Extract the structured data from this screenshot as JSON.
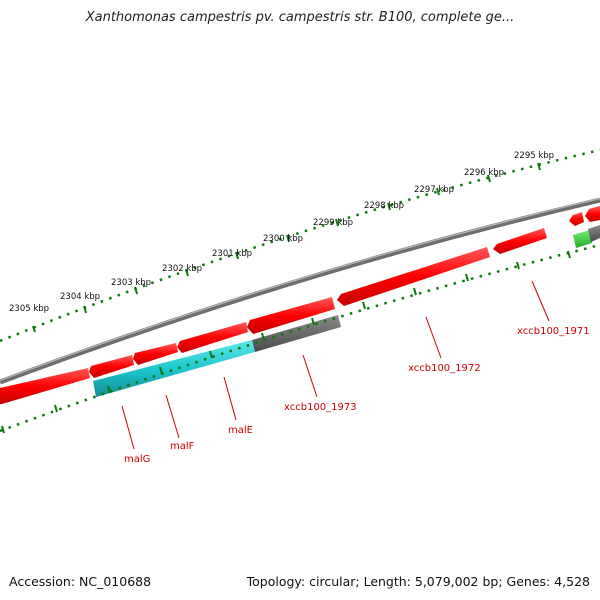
{
  "title": "Xanthomonas campestris pv. campestris str. B100, complete ge...",
  "footer": {
    "accession": "Accession: NC_010688",
    "summary": "Topology: circular; Length: 5,079,002 bp; Genes: 4,528"
  },
  "scale_labels": [
    "2305 kbp",
    "2304 kbp",
    "2303 kbp",
    "2302 kbp",
    "2301 kbp",
    "2300 kbp",
    "2299 kbp",
    "2298 kbp",
    "2297 kbp",
    "2296 kbp",
    "2295 kbp"
  ],
  "gene_labels": [
    "malG",
    "malF",
    "malE",
    "xccb100_1973",
    "xccb100_1972",
    "xccb100_1971"
  ],
  "colors": {
    "cds_forward": "#ff0000",
    "cds_reverse": "#ff0000",
    "malE_feature": "#1ec8d0",
    "grey_feature": "#6e6e6e",
    "green_feature": "#33cc33",
    "backbone": "#777777",
    "tick": "#0a7a0a",
    "label": "#cc0000"
  }
}
